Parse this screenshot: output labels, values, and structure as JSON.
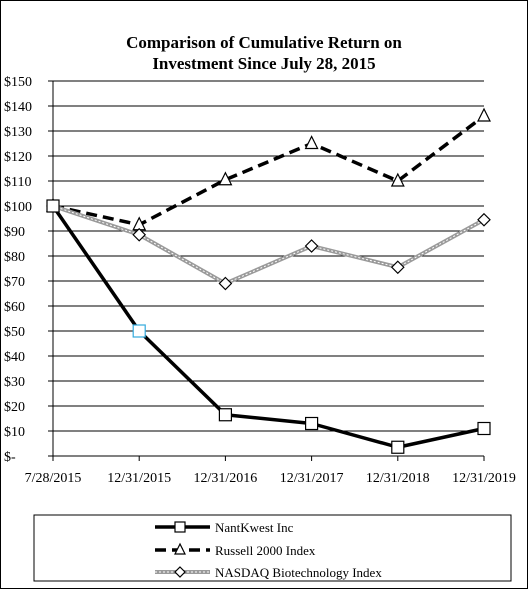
{
  "chart_data": {
    "type": "line",
    "title_lines": [
      "Comparison  of Cumulative  Return on",
      "Investment Since July 28, 2015"
    ],
    "categories": [
      "7/28/2015",
      "12/31/2015",
      "12/31/2016",
      "12/31/2017",
      "12/31/2018",
      "12/31/2019"
    ],
    "y_tick_labels": [
      "$-",
      "$10",
      "$20",
      "$30",
      "$40",
      "$50",
      "$60",
      "$70",
      "$80",
      "$90",
      "$100",
      "$110",
      "$120",
      "$130",
      "$140",
      "$150"
    ],
    "ylim": [
      0,
      150
    ],
    "y_step": 10,
    "grid": true,
    "legend_position": "bottom",
    "series": [
      {
        "name": "NantKwest Inc",
        "values": [
          100,
          50,
          16.5,
          13,
          3.5,
          11
        ],
        "color": "#000000",
        "style": "solid-thick",
        "marker": "square"
      },
      {
        "name": "Russell 2000 Index",
        "values": [
          100,
          92.5,
          110.5,
          125,
          110,
          136
        ],
        "color": "#000000",
        "style": "dashed-thick",
        "marker": "triangle"
      },
      {
        "name": "NASDAQ Biotechnology Index",
        "values": [
          100,
          88.5,
          69,
          84,
          75.5,
          94.5
        ],
        "color": "#9a9a9a",
        "style": "striped",
        "marker": "diamond"
      }
    ]
  }
}
